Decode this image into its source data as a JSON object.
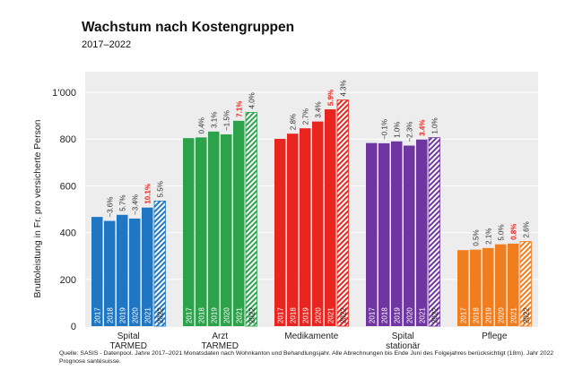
{
  "chart_data": {
    "type": "bar",
    "title": "Wachstum nach Kostengruppen",
    "subtitle": "2017–2022",
    "ylabel": "Bruttoleistung in Fr. pro versicherte Person",
    "xlabel": "",
    "ylim": [
      0,
      1000
    ],
    "yticks": [
      0,
      200,
      400,
      600,
      800,
      1000
    ],
    "ytick_labels": [
      "0",
      "200",
      "400",
      "600",
      "800",
      "1’000"
    ],
    "years": [
      "2017",
      "2018",
      "2019",
      "2020",
      "2021",
      "2022"
    ],
    "forecast_year": "2022",
    "groups": [
      {
        "name": "Spital TARMED",
        "label_lines": [
          "Spital",
          "TARMED"
        ],
        "color": "#1f77c4",
        "values": [
          467,
          450,
          476,
          460,
          507,
          535
        ],
        "growth": [
          "",
          "−3.6%",
          "5.7%",
          "−3.4%",
          "10.1%",
          "5.5%"
        ],
        "highlight_index": 4
      },
      {
        "name": "Arzt TARMED",
        "label_lines": [
          "Arzt",
          "TARMED"
        ],
        "color": "#2ca24b",
        "values": [
          804,
          807,
          832,
          820,
          878,
          914
        ],
        "growth": [
          "",
          "0.4%",
          "3.1%",
          "−1.5%",
          "7.1%",
          "4.0%"
        ],
        "highlight_index": 4
      },
      {
        "name": "Medikamente",
        "label_lines": [
          "Medikamente"
        ],
        "color": "#e8251f",
        "values": [
          801,
          823,
          846,
          875,
          927,
          967
        ],
        "growth": [
          "",
          "2.8%",
          "2.7%",
          "3.4%",
          "5.9%",
          "4.3%"
        ],
        "highlight_index": 4
      },
      {
        "name": "Spital stationär",
        "label_lines": [
          "Spital",
          "stationär"
        ],
        "color": "#6f35a0",
        "values": [
          783,
          782,
          790,
          772,
          798,
          806
        ],
        "growth": [
          "",
          "−0.1%",
          "1.0%",
          "−2.3%",
          "3.4%",
          "1.0%"
        ],
        "highlight_index": 4
      },
      {
        "name": "Pflege",
        "label_lines": [
          "Pflege"
        ],
        "color": "#f07d1e",
        "values": [
          325,
          327,
          334,
          350,
          353,
          362
        ],
        "growth": [
          "",
          "0.5%",
          "2.1%",
          "5.0%",
          "0.8%",
          "2.6%"
        ],
        "highlight_index": 4
      }
    ],
    "highlight_color": "#e8251f"
  },
  "source_note": "Quelle: SASIS - Datenpool. Jahre 2017–2021 Monatsdaten nach Wohnkanton und Behandlungsjahr. Alle Abrechnungen bis Ende Juni des Folgejahres berücksichtigt (18m). Jahr 2022 Prognose santésuisse."
}
